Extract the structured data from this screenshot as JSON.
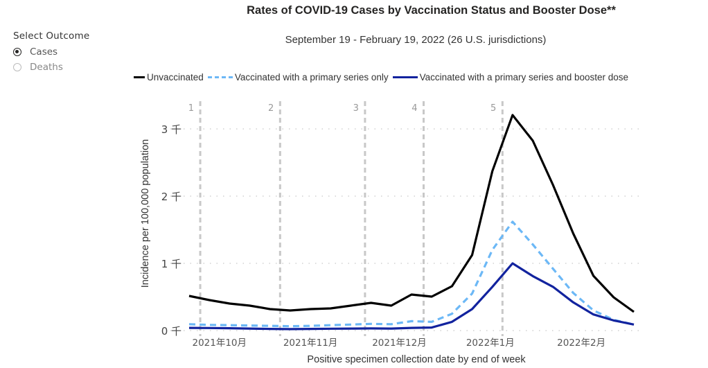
{
  "slicer": {
    "title": "Select Outcome",
    "options": [
      {
        "label": "Cases",
        "selected": true
      },
      {
        "label": "Deaths",
        "selected": false
      }
    ]
  },
  "colors": {
    "unvaccinated": "#000000",
    "primary_only": "#6cb8f6",
    "booster": "#12239e",
    "marker": "#c8c8c8",
    "grid": "#c8c8c8"
  },
  "chart_data": {
    "type": "line",
    "title": "Rates of COVID-19 Cases by Vaccination Status and Booster Dose**",
    "subtitle": "September 19 - February 19, 2022 (26 U.S. jurisdictions)",
    "xlabel": "Positive specimen collection date by end of week",
    "ylabel": "Incidence per 100,000 population",
    "ylim": [
      0,
      3300
    ],
    "yticks": [
      {
        "value": 0,
        "label": "0 千"
      },
      {
        "value": 1000,
        "label": "1 千"
      },
      {
        "value": 2000,
        "label": "2 千"
      },
      {
        "value": 3000,
        "label": "3 千"
      }
    ],
    "x_week_count": 23,
    "xticks": [
      {
        "week": 1.5,
        "label": "2021年10月"
      },
      {
        "week": 6.0,
        "label": "2021年11月"
      },
      {
        "week": 10.4,
        "label": "2021年12月"
      },
      {
        "week": 14.9,
        "label": "2022年1月"
      },
      {
        "week": 19.4,
        "label": "2022年2月"
      }
    ],
    "markers": [
      {
        "week": 0.55,
        "label": "1"
      },
      {
        "week": 4.5,
        "label": "2"
      },
      {
        "week": 8.7,
        "label": "3"
      },
      {
        "week": 11.6,
        "label": "4"
      },
      {
        "week": 15.5,
        "label": "5"
      }
    ],
    "grid": true,
    "legend_position": "top",
    "series": [
      {
        "name": "Unvaccinated",
        "key": "unvaccinated",
        "style": "solid",
        "values": [
          515,
          454,
          402,
          371,
          320,
          299,
          320,
          330,
          371,
          412,
          371,
          536,
          505,
          660,
          1124,
          2371,
          3206,
          2825,
          2165,
          1443,
          814,
          495,
          278
        ]
      },
      {
        "name": "Vaccinated with a primary series only",
        "key": "primary_only",
        "style": "dashed",
        "values": [
          95,
          85,
          80,
          75,
          70,
          65,
          70,
          80,
          90,
          100,
          95,
          140,
          130,
          250,
          550,
          1200,
          1620,
          1280,
          920,
          560,
          300,
          160,
          90
        ]
      },
      {
        "name": "Vaccinated with a primary series and booster dose",
        "key": "booster",
        "style": "solid",
        "values": [
          40,
          38,
          35,
          30,
          25,
          22,
          25,
          28,
          30,
          32,
          30,
          40,
          45,
          130,
          320,
          650,
          1000,
          810,
          650,
          420,
          240,
          150,
          90
        ]
      }
    ]
  }
}
